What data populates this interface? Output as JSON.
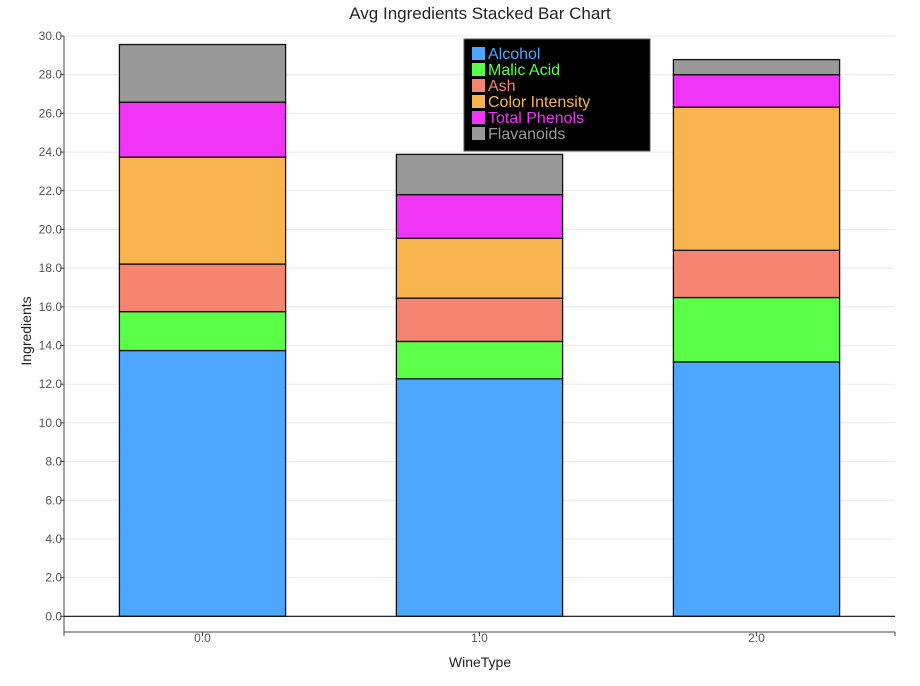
{
  "chart_data": {
    "type": "bar",
    "stacked": true,
    "title": "Avg Ingredients Stacked Bar Chart",
    "xlabel": "WineType",
    "ylabel": "Ingredients",
    "categories": [
      "0.0",
      "1.0",
      "2.0"
    ],
    "ylim": [
      -0.5,
      30.0
    ],
    "yticks": [
      "0.0",
      "2.0",
      "4.0",
      "6.0",
      "8.0",
      "10.0",
      "12.0",
      "14.0",
      "16.0",
      "18.0",
      "20.0",
      "22.0",
      "24.0",
      "26.0",
      "28.0",
      "30.0"
    ],
    "grid": true,
    "legend_position": "top-center",
    "series": [
      {
        "name": "Alcohol",
        "color": "#4da6ff",
        "values": [
          13.74,
          12.28,
          13.15
        ]
      },
      {
        "name": "Malic Acid",
        "color": "#5cff47",
        "values": [
          2.01,
          1.93,
          3.33
        ]
      },
      {
        "name": "Ash",
        "color": "#f58470",
        "values": [
          2.46,
          2.24,
          2.44
        ]
      },
      {
        "name": "Color Intensity",
        "color": "#f8b44d",
        "values": [
          5.53,
          3.09,
          7.4
        ]
      },
      {
        "name": "Total Phenols",
        "color": "#f034f5",
        "values": [
          2.84,
          2.26,
          1.68
        ]
      },
      {
        "name": "Flavanoids",
        "color": "#999999",
        "values": [
          2.98,
          2.08,
          0.78
        ]
      }
    ]
  }
}
